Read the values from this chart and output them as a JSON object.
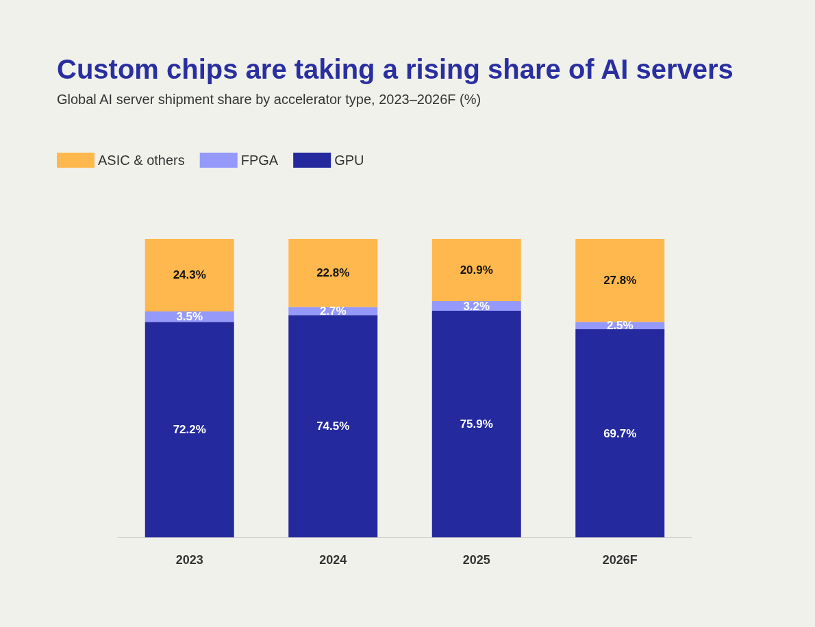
{
  "chart_data": {
    "type": "bar",
    "title": "Custom chips are taking a rising share of AI servers",
    "subtitle": "Global AI server shipment share by accelerator type, 2023–2026F (%)",
    "categories": [
      "2023",
      "2024",
      "2025",
      "2026F"
    ],
    "stacked": true,
    "legend": "top left",
    "grid": false,
    "series": [
      {
        "name": "GPU",
        "color": "#24299e",
        "values": [
          72.2,
          74.5,
          75.9,
          69.7
        ],
        "value_labels": [
          "72.2%",
          "74.5%",
          "75.9%",
          "69.7%"
        ]
      },
      {
        "name": "FPGA",
        "color": "#9499fa",
        "values": [
          3.5,
          2.7,
          3.2,
          2.5
        ],
        "value_labels": [
          "3.5%",
          "2.7%",
          "3.2%",
          "2.5%"
        ]
      },
      {
        "name": "ASIC & others",
        "color": "#ffb84d",
        "values": [
          24.3,
          22.8,
          20.9,
          27.8
        ],
        "value_labels": [
          "24.3%",
          "22.8%",
          "20.9%",
          "27.8%"
        ]
      }
    ]
  }
}
